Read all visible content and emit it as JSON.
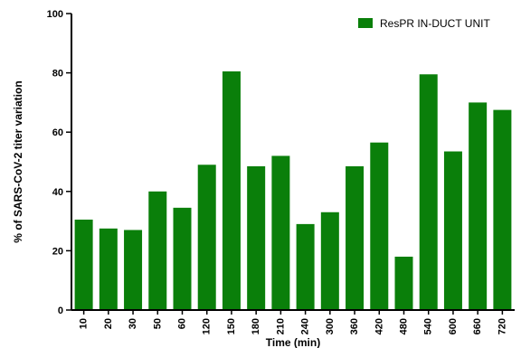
{
  "chart_data": {
    "type": "bar",
    "categories": [
      "10",
      "20",
      "30",
      "50",
      "60",
      "120",
      "150",
      "180",
      "210",
      "240",
      "300",
      "360",
      "420",
      "480",
      "540",
      "600",
      "660",
      "720"
    ],
    "series": [
      {
        "name": "ResPR IN-DUCT UNIT",
        "values": [
          30.5,
          27.5,
          27,
          40,
          34.5,
          49,
          80.5,
          48.5,
          52,
          29,
          33,
          48.5,
          56.5,
          18,
          79.5,
          53.5,
          70,
          67.5
        ]
      }
    ],
    "xlabel": "Time (min)",
    "ylabel": "% of SARS-CoV-2 titer variation",
    "ylim": [
      0,
      100
    ],
    "yticks": [
      0,
      20,
      40,
      60,
      80,
      100
    ],
    "grid": false,
    "legend_position": "top-right",
    "colors": {
      "bar": "#0a7f0a",
      "axis": "#000000"
    }
  }
}
